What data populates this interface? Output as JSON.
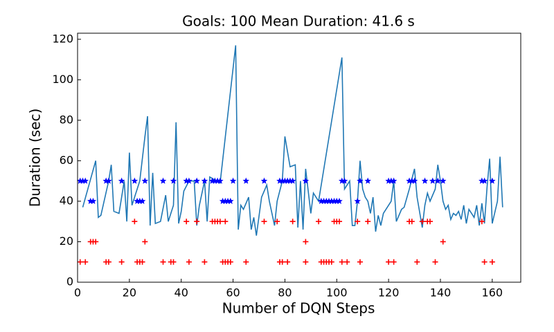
{
  "chart_data": {
    "type": "line",
    "title": "Goals: 100     Mean Duration: 41.6 s",
    "xlabel": "Number of DQN Steps",
    "ylabel": "Duration (sec)",
    "xlim": [
      0,
      171
    ],
    "ylim": [
      0,
      123
    ],
    "xticks": [
      0,
      20,
      40,
      60,
      80,
      100,
      120,
      140,
      160
    ],
    "yticks": [
      0,
      20,
      40,
      60,
      80,
      100,
      120
    ],
    "series": [
      {
        "color": "#1f77b4",
        "x": [
          2,
          7,
          8,
          9,
          12,
          13,
          14,
          16,
          18,
          19,
          20,
          21,
          24,
          26,
          27,
          28,
          29,
          30,
          32,
          34,
          35,
          37,
          38,
          39,
          40,
          41,
          43,
          45,
          46,
          47,
          49,
          50,
          51,
          55,
          61,
          62,
          63,
          64,
          66,
          67,
          68,
          69,
          71,
          73,
          74,
          76,
          77,
          79,
          80,
          82,
          84,
          85,
          86,
          87,
          88,
          90,
          91,
          93,
          102,
          103,
          105,
          106,
          107,
          108,
          109,
          110,
          111,
          112,
          113,
          114,
          115,
          116,
          117,
          118,
          121,
          122,
          123,
          125,
          126,
          128,
          129,
          130,
          131,
          133,
          134,
          135,
          136,
          138,
          139,
          140,
          141,
          142,
          143,
          144,
          145,
          146,
          147,
          148,
          149,
          150,
          151,
          152,
          153,
          154,
          155,
          156,
          157,
          158,
          159,
          160,
          162,
          163,
          164
        ],
        "values": [
          37,
          60,
          32,
          33,
          50,
          58,
          35,
          34,
          50,
          30,
          64,
          38,
          50,
          72,
          82,
          28,
          54,
          29,
          30,
          43,
          30,
          38,
          79,
          29,
          35,
          45,
          50,
          50,
          28,
          38,
          50,
          30,
          52,
          49,
          117,
          26,
          38,
          36,
          42,
          26,
          32,
          23,
          42,
          48,
          40,
          28,
          40,
          50,
          72,
          57,
          58,
          27,
          50,
          26,
          56,
          34,
          44,
          40,
          111,
          46,
          50,
          28,
          28,
          40,
          60,
          46,
          42,
          40,
          34,
          42,
          25,
          33,
          28,
          34,
          40,
          50,
          30,
          36,
          37,
          46,
          51,
          56,
          42,
          27,
          38,
          44,
          40,
          46,
          58,
          50,
          40,
          36,
          38,
          31,
          34,
          33,
          35,
          31,
          38,
          29,
          36,
          34,
          32,
          38,
          28,
          39,
          29,
          47,
          61,
          29,
          40,
          62,
          37
        ]
      },
      {
        "type": "scatter",
        "marker": "star",
        "color": "#0000ff",
        "x": [
          1,
          2,
          3,
          11,
          12,
          17,
          22,
          26,
          33,
          37,
          42,
          43,
          46,
          49,
          52,
          53,
          54,
          55,
          60,
          65,
          72,
          78,
          79,
          80,
          81,
          82,
          83,
          88,
          102,
          103,
          109,
          112,
          120,
          121,
          122,
          128,
          129,
          130,
          134,
          137,
          139,
          141,
          156,
          157,
          160,
          5,
          6,
          23,
          24,
          25,
          56,
          57,
          58,
          59,
          94,
          95,
          96,
          97,
          98,
          99,
          100,
          101,
          108
        ],
        "values": [
          50,
          50,
          50,
          50,
          50,
          50,
          50,
          50,
          50,
          50,
          50,
          50,
          50,
          50,
          50,
          50,
          50,
          50,
          50,
          50,
          50,
          50,
          50,
          50,
          50,
          50,
          50,
          50,
          50,
          50,
          50,
          50,
          50,
          50,
          50,
          50,
          50,
          50,
          50,
          50,
          50,
          50,
          50,
          50,
          50,
          40,
          40,
          40,
          40,
          40,
          40,
          40,
          40,
          40,
          40,
          40,
          40,
          40,
          40,
          40,
          40,
          40,
          40
        ]
      },
      {
        "type": "scatter",
        "marker": "plus",
        "color": "#ff0000",
        "x": [
          22,
          42,
          46,
          52,
          53,
          54,
          55,
          57,
          72,
          77,
          83,
          93,
          99,
          100,
          101,
          108,
          112,
          128,
          129,
          133,
          135,
          136,
          156,
          5,
          6,
          7,
          26,
          88,
          141,
          1,
          3,
          11,
          12,
          17,
          23,
          24,
          25,
          33,
          36,
          37,
          43,
          49,
          56,
          57,
          58,
          59,
          65,
          78,
          79,
          81,
          88,
          94,
          95,
          96,
          97,
          98,
          102,
          104,
          109,
          120,
          122,
          131,
          138,
          157,
          160
        ],
        "values": [
          30,
          30,
          30,
          30,
          30,
          30,
          30,
          30,
          30,
          30,
          30,
          30,
          30,
          30,
          30,
          30,
          30,
          30,
          30,
          30,
          30,
          30,
          30,
          20,
          20,
          20,
          20,
          20,
          20,
          10,
          10,
          10,
          10,
          10,
          10,
          10,
          10,
          10,
          10,
          10,
          10,
          10,
          10,
          10,
          10,
          10,
          10,
          10,
          10,
          10,
          10,
          10,
          10,
          10,
          10,
          10,
          10,
          10,
          10,
          10,
          10,
          10,
          10,
          10,
          10
        ]
      }
    ]
  }
}
